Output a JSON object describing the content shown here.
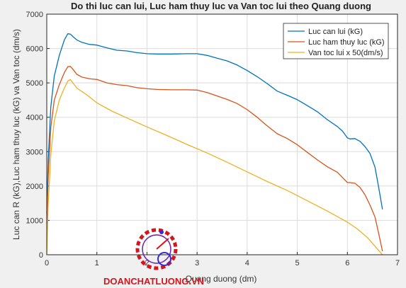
{
  "chart_data": {
    "type": "line",
    "title": "Do thi luc can lui, Luc ham thuy luc va Van toc lui theo Quang duong",
    "xlabel": "Quang duong (dm)",
    "ylabel": "Luc can R (kG),Luc ham thuy luc (kG) va Van toc (dm/s)",
    "xlim": [
      0,
      7
    ],
    "ylim": [
      0,
      7000
    ],
    "xticks": [
      0,
      1,
      2,
      3,
      4,
      5,
      6,
      7
    ],
    "yticks": [
      0,
      1000,
      2000,
      3000,
      4000,
      5000,
      6000,
      7000
    ],
    "grid": true,
    "legend_position": "top-right",
    "series": [
      {
        "name": "Luc can lui (kG)",
        "color": "#0072bd",
        "x": [
          0,
          0.03,
          0.08,
          0.15,
          0.25,
          0.35,
          0.42,
          0.47,
          0.52,
          0.6,
          0.7,
          0.85,
          1.0,
          1.2,
          1.4,
          1.6,
          1.8,
          2.0,
          2.2,
          2.5,
          2.8,
          3.0,
          3.2,
          3.4,
          3.6,
          3.8,
          4.0,
          4.2,
          4.4,
          4.6,
          4.8,
          5.0,
          5.2,
          5.4,
          5.6,
          5.8,
          5.9,
          6.0,
          6.05,
          6.15,
          6.25,
          6.35,
          6.45,
          6.55,
          6.62,
          6.7
        ],
        "y": [
          1200,
          2800,
          4300,
          5200,
          5800,
          6250,
          6430,
          6420,
          6350,
          6250,
          6180,
          6120,
          6100,
          6020,
          5950,
          5930,
          5880,
          5850,
          5840,
          5840,
          5850,
          5850,
          5800,
          5720,
          5640,
          5520,
          5360,
          5180,
          4980,
          4760,
          4640,
          4510,
          4340,
          4160,
          3930,
          3730,
          3600,
          3400,
          3370,
          3380,
          3300,
          3150,
          2950,
          2550,
          2000,
          1320
        ]
      },
      {
        "name": "Luc ham thuy luc (kG)",
        "color": "#d95319",
        "x": [
          0,
          0.03,
          0.08,
          0.15,
          0.25,
          0.35,
          0.42,
          0.47,
          0.52,
          0.6,
          0.7,
          0.85,
          1.0,
          1.2,
          1.4,
          1.6,
          1.8,
          2.0,
          2.2,
          2.5,
          2.8,
          3.0,
          3.2,
          3.4,
          3.6,
          3.8,
          4.0,
          4.2,
          4.4,
          4.6,
          4.8,
          5.0,
          5.2,
          5.4,
          5.6,
          5.8,
          5.9,
          6.0,
          6.05,
          6.15,
          6.25,
          6.35,
          6.45,
          6.55,
          6.62,
          6.7
        ],
        "y": [
          900,
          2300,
          3700,
          4500,
          4950,
          5300,
          5470,
          5480,
          5400,
          5250,
          5170,
          5120,
          5100,
          5000,
          4950,
          4920,
          4860,
          4830,
          4810,
          4800,
          4800,
          4790,
          4720,
          4620,
          4520,
          4400,
          4220,
          4000,
          3750,
          3520,
          3380,
          3200,
          2980,
          2760,
          2560,
          2400,
          2250,
          2100,
          2100,
          2080,
          1960,
          1750,
          1450,
          1100,
          650,
          100
        ]
      },
      {
        "name": "Van toc lui x 50(dm/s)",
        "color": "#edb120",
        "x": [
          0,
          0.03,
          0.08,
          0.15,
          0.25,
          0.35,
          0.42,
          0.47,
          0.52,
          0.6,
          0.8,
          1.0,
          1.3,
          1.6,
          2.0,
          2.4,
          2.8,
          3.2,
          3.6,
          4.0,
          4.4,
          4.8,
          5.2,
          5.6,
          6.0,
          6.2,
          6.4,
          6.55,
          6.65,
          6.7
        ],
        "y": [
          0,
          1500,
          2900,
          3900,
          4500,
          4850,
          5050,
          5100,
          5000,
          4850,
          4650,
          4420,
          4180,
          3980,
          3720,
          3470,
          3210,
          2960,
          2690,
          2410,
          2130,
          1870,
          1570,
          1270,
          950,
          750,
          500,
          250,
          80,
          0
        ]
      }
    ]
  },
  "watermark": {
    "text": "DOANCHATLUONG.VN",
    "color": "#d6141c"
  }
}
